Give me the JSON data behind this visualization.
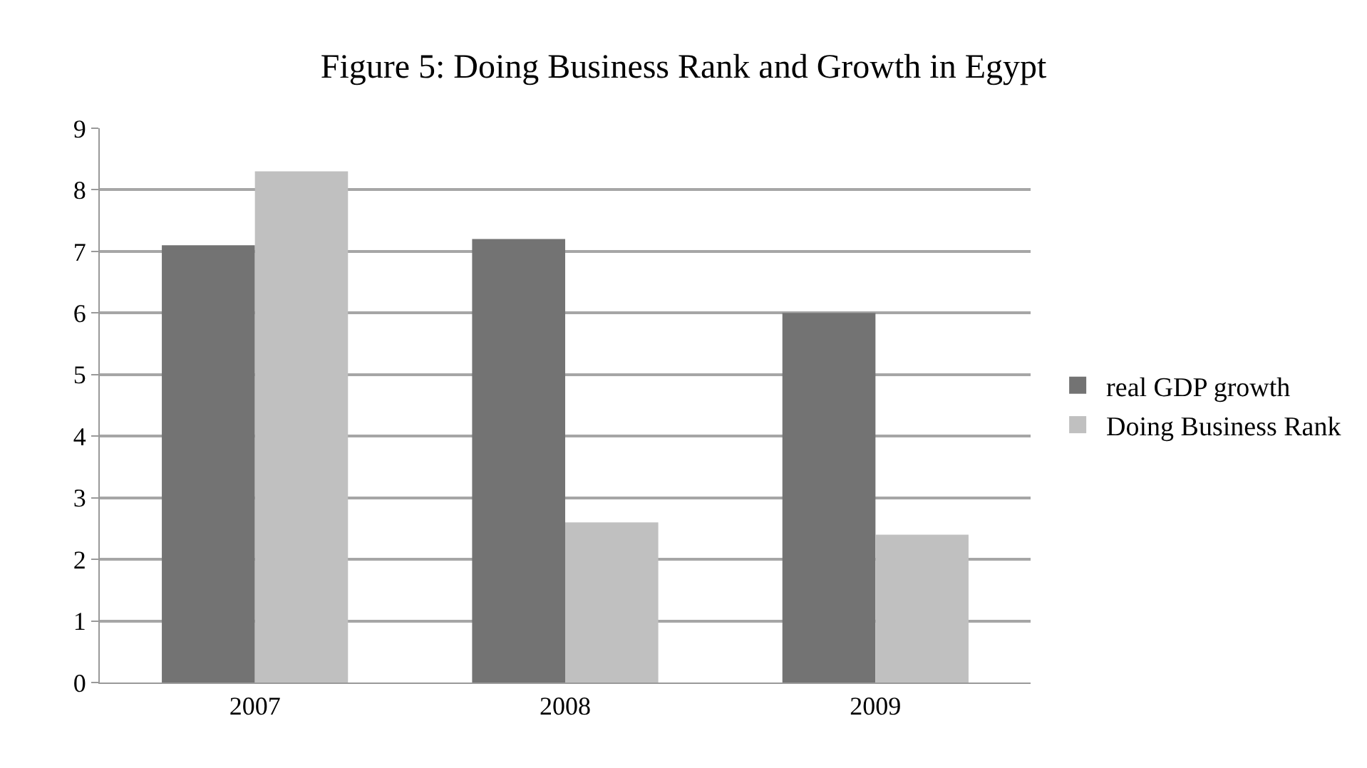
{
  "chart_data": {
    "type": "bar",
    "title": "Figure 5: Doing Business Rank and Growth in Egypt",
    "categories": [
      "2007",
      "2008",
      "2009"
    ],
    "series": [
      {
        "name": "real GDP growth",
        "color": "#737373",
        "values": [
          7.1,
          7.2,
          6.0
        ]
      },
      {
        "name": "Doing Business Rank",
        "color": "#c0c0c0",
        "values": [
          8.3,
          2.6,
          2.4
        ]
      }
    ],
    "ylim": [
      0,
      9
    ],
    "yticks": [
      0,
      1,
      2,
      3,
      4,
      5,
      6,
      7,
      8,
      9
    ],
    "grid": "y",
    "legend": "right"
  }
}
